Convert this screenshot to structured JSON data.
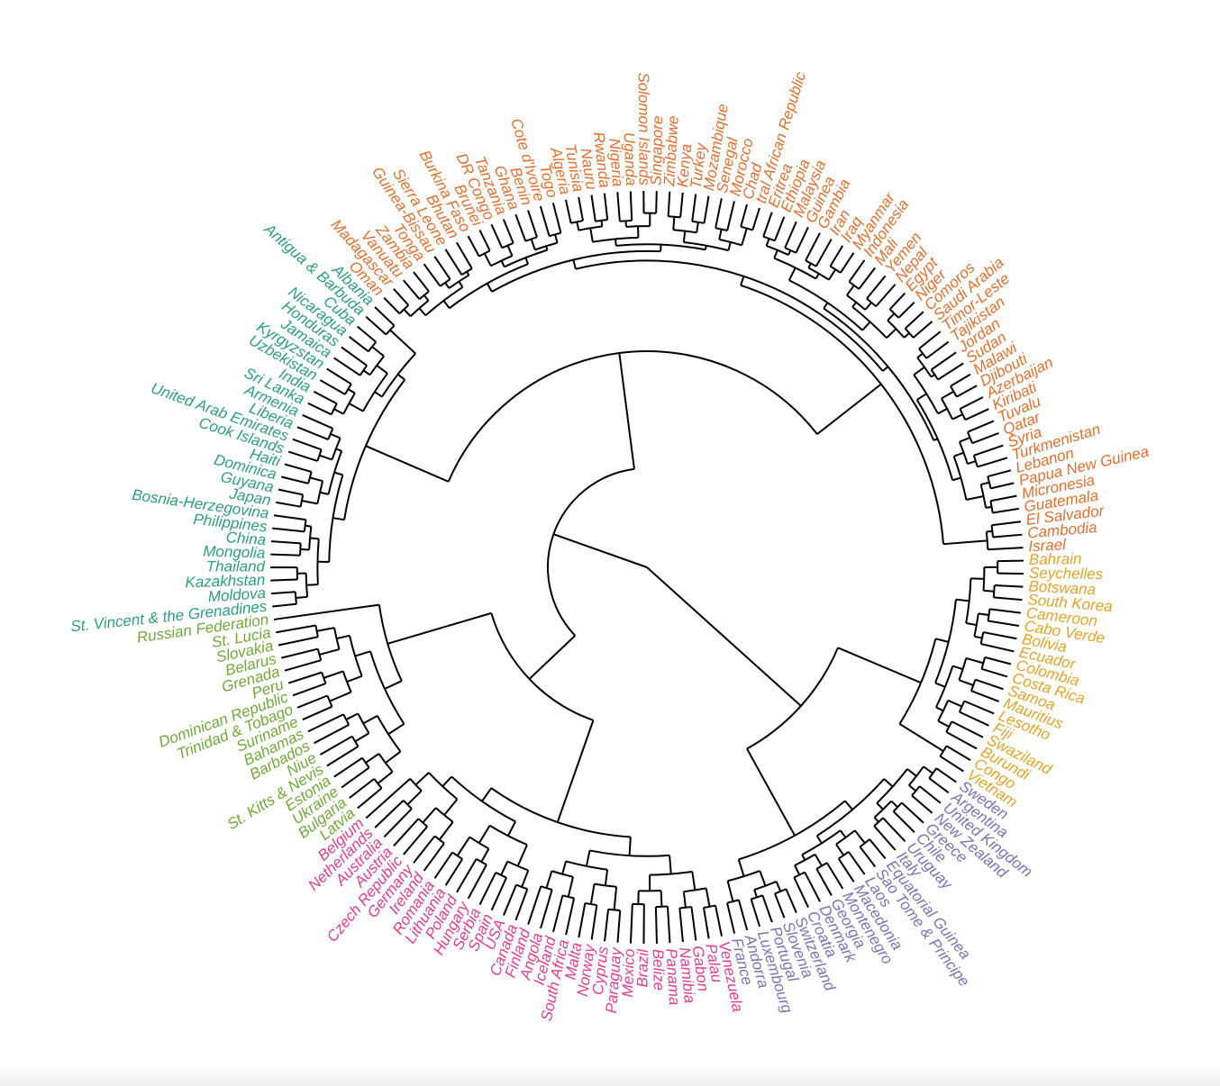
{
  "diagram": {
    "type": "circular-dendrogram",
    "colors": {
      "orange": "#e07030",
      "gold": "#e0a42a",
      "purple": "#7b71b5",
      "pink": "#e23c92",
      "lime": "#70a83a",
      "teal": "#2e9e77",
      "branch": "#000000"
    },
    "clusters": [
      {
        "color": "gold",
        "leaves": [
          "Bahrain",
          "Seychelles",
          "Botswana",
          "South Korea",
          "Cameroon",
          "Cabo Verde",
          "Bolivia",
          "Ecuador",
          "Colombia",
          "Costa Rica",
          "Samoa",
          "Mauritius",
          "Lesotho",
          "Fiji",
          "Swaziland",
          "Burundi",
          "Congo",
          "Vietnam"
        ]
      },
      {
        "color": "purple",
        "leaves": [
          "Sweden",
          "Argentina",
          "United Kingdom",
          "New Zealand",
          "Greece",
          "Chile",
          "Uruguay",
          "Italy",
          "Equatorial Guinea",
          "Sao Tome & Principe",
          "Laos",
          "Macedonia",
          "Montenegro",
          "Georgia",
          "Denmark",
          "Croatia",
          "Switzerland",
          "Slovenia",
          "Portugal",
          "Luxembourg",
          "Andorra",
          "France"
        ]
      },
      {
        "color": "pink",
        "leaves": [
          "Venezuela",
          "Palau",
          "Gabon",
          "Namibia",
          "Panama",
          "Belize",
          "Brazil",
          "Mexico",
          "Paraguay",
          "Cyprus",
          "Norway",
          "Malta",
          "South Africa",
          "Iceland",
          "Angola",
          "Finland",
          "Canada",
          "USA",
          "Spain",
          "Serbia",
          "Hungary",
          "Poland",
          "Lithuania",
          "Romania",
          "Ireland",
          "Germany",
          "Czech Republic",
          "Austria",
          "Australia",
          "Netherlands",
          "Belgium"
        ]
      },
      {
        "color": "lime",
        "leaves": [
          "Latvia",
          "Bulgaria",
          "Ukraine",
          "Estonia",
          "St. Kitts & Nevis",
          "Niue",
          "Barbados",
          "Bahamas",
          "Suriname",
          "Trinidad & Tobago",
          "Dominican Republic",
          "Peru",
          "Grenada",
          "Belarus",
          "Slovakia",
          "St. Lucia",
          "Russian Federation"
        ]
      },
      {
        "color": "teal",
        "leaves": [
          "St. Vincent & the Grenadines",
          "Moldova",
          "Kazakhstan",
          "Thailand",
          "Mongolia",
          "China",
          "Philippines",
          "Bosnia-Herzegovina",
          "Japan",
          "Guyana",
          "Dominica",
          "Haiti",
          "Cook Islands",
          "United Arab Emirates",
          "Liberia",
          "Armenia",
          "Sri Lanka",
          "India",
          "Uzbekistan",
          "Kyrgyzstan",
          "Jamaica",
          "Honduras",
          "Nicaragua",
          "Cuba",
          "Antigua & Barbuda",
          "Albania"
        ]
      },
      {
        "color": "orange",
        "leaves": [
          "Oman",
          "Madagascar",
          "Vanuatu",
          "Zambia",
          "Tonga",
          "Guinea-Bissau",
          "Sierra Leone",
          "Bhutan",
          "Burkina Faso",
          "Brunei",
          "DR Congo",
          "Tanzania",
          "Ghana",
          "Benin",
          "Cote d'Ivoire",
          "Togo",
          "Algeria",
          "Tunisia",
          "Nauru",
          "Rwanda",
          "Nigeria",
          "Uganda",
          "Solomon Islands",
          "Singapore",
          "Zimbabwe",
          "Kenya",
          "Turkey",
          "Mozambique",
          "Senegal",
          "Morocco",
          "Chad",
          "tral African Republic",
          "Eritrea",
          "Ethiopia",
          "Malaysia",
          "Guinea",
          "Gambia",
          "Iran",
          "Iraq",
          "Myanmar",
          "Indonesia",
          "Mali",
          "Yemen",
          "Nepal",
          "Egypt",
          "Niger",
          "Comoros",
          "Saudi Arabia",
          "Timor-Leste",
          "Tajikistan",
          "Jordan",
          "Sudan",
          "Malawi",
          "Djibouti",
          "Azerbaijan",
          "Kiribati",
          "Tuvalu",
          "Qatar",
          "Syria",
          "Turkmenistan",
          "Lebanon",
          "Papua New Guinea",
          "Micronesia",
          "Guatemala",
          "El Salvador",
          "Cambodia",
          "Israel"
        ]
      }
    ]
  }
}
